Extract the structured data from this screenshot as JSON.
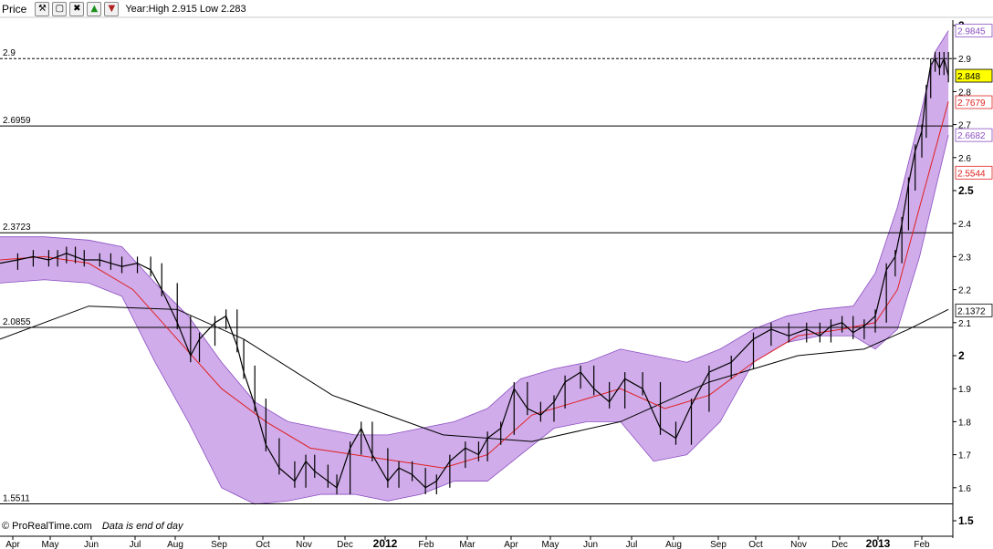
{
  "toolbar": {
    "title": "Price",
    "year_info": "Year:High 2.915 Low 2.283",
    "icons": [
      "wrench-icon",
      "window-icon",
      "close-icon",
      "up-arrow-icon",
      "down-arrow-icon"
    ]
  },
  "footer": {
    "brand": "© ProRealTime.com",
    "note": "Data is end of day"
  },
  "colors": {
    "band_fill": "#c89ee6",
    "band_edge": "#8b4fc2",
    "ma_red": "#e02020",
    "ma_green": "#22a022",
    "ma_pink": "#d070b0",
    "ma_long": "#000000",
    "price_tag": "#ffff00"
  },
  "chart_data": {
    "type": "line",
    "title": "",
    "xlabel": "",
    "ylabel": "",
    "ylim": [
      1.5,
      3.0
    ],
    "grid": false,
    "x_tick_labels": [
      "Apr",
      "May",
      "Jun",
      "Jul",
      "Aug",
      "Sep",
      "Oct",
      "Nov",
      "Dec",
      "2012",
      "Feb",
      "Mar",
      "Apr",
      "May",
      "Jun",
      "Jul",
      "Aug",
      "Sep",
      "Oct",
      "Nov",
      "Dec",
      "2013",
      "Feb"
    ],
    "y_tick_labels": [
      "1.5",
      "1.6",
      "1.7",
      "1.8",
      "1.9",
      "2",
      "2.1",
      "2.2",
      "2.3",
      "2.4",
      "2.5",
      "2.6",
      "2.7",
      "2.8",
      "2.9",
      "3"
    ],
    "horizontal_levels": [
      {
        "label": "2.9",
        "value": 2.9,
        "style": "dashed"
      },
      {
        "label": "2.6959",
        "value": 2.6959,
        "style": "solid"
      },
      {
        "label": "2.3723",
        "value": 2.3723,
        "style": "solid"
      },
      {
        "label": "2.0855",
        "value": 2.0855,
        "style": "solid"
      },
      {
        "label": "1.5511",
        "value": 1.5511,
        "style": "solid"
      }
    ],
    "right_tags": [
      {
        "label": "2.9845",
        "value": 2.9845,
        "color": "#8b4fc2"
      },
      {
        "label": "2.848",
        "value": 2.848,
        "color": "#000000",
        "highlight": true
      },
      {
        "label": "2.7679",
        "value": 2.7679,
        "color": "#e02020"
      },
      {
        "label": "2.6682",
        "value": 2.6682,
        "color": "#8b4fc2"
      },
      {
        "label": "2.5544",
        "value": 2.5544,
        "color": "#e02020"
      },
      {
        "label": "2.1372",
        "value": 2.1372,
        "color": "#000000"
      }
    ],
    "series": [
      {
        "key": "close",
        "x": [
          0,
          8,
          15,
          22,
          26,
          30,
          34,
          38,
          45,
          50,
          55,
          62,
          68,
          73,
          80,
          86,
          90,
          97,
          102,
          107,
          110,
          115,
          120,
          126,
          133,
          138,
          142
        ],
        "values": [
          2.28,
          2.29,
          2.3,
          2.29,
          2.3,
          2.31,
          2.3,
          2.29,
          2.29,
          2.28,
          2.27,
          2.28,
          2.26,
          2.2,
          2.1,
          2.0,
          2.05,
          2.1,
          2.12,
          2.03,
          1.95,
          1.85,
          1.73,
          1.66,
          1.62,
          1.68,
          1.65
        ]
      },
      {
        "key": "close_cont",
        "x": [
          142,
          148,
          152,
          158,
          163,
          168,
          175,
          180,
          186,
          192,
          197,
          203,
          210,
          216,
          220,
          226,
          232,
          238,
          244,
          250,
          255,
          262,
          268,
          275,
          282,
          290,
          298,
          305,
          312,
          320,
          330,
          340,
          348,
          356,
          364,
          370,
          375,
          380,
          385,
          390,
          395,
          400,
          404,
          407,
          410,
          413,
          416,
          418,
          420,
          422,
          424,
          426,
          428
        ],
        "values": [
          1.65,
          1.62,
          1.6,
          1.72,
          1.78,
          1.7,
          1.62,
          1.66,
          1.64,
          1.6,
          1.62,
          1.68,
          1.72,
          1.7,
          1.75,
          1.78,
          1.9,
          1.84,
          1.82,
          1.86,
          1.92,
          1.95,
          1.9,
          1.86,
          1.93,
          1.9,
          1.78,
          1.75,
          1.85,
          1.95,
          1.98,
          2.05,
          2.08,
          2.06,
          2.08,
          2.06,
          2.09,
          2.1,
          2.07,
          2.09,
          2.12,
          2.26,
          2.3,
          2.4,
          2.52,
          2.62,
          2.68,
          2.8,
          2.88,
          2.9,
          2.87,
          2.9,
          2.848
        ]
      },
      {
        "key": "sma_long",
        "x": [
          0,
          40,
          80,
          110,
          150,
          200,
          240,
          280,
          320,
          360,
          390,
          410,
          428
        ],
        "values": [
          2.05,
          2.15,
          2.14,
          2.05,
          1.88,
          1.76,
          1.74,
          1.8,
          1.92,
          2.0,
          2.02,
          2.08,
          2.14
        ]
      },
      {
        "key": "sma_red",
        "x": [
          0,
          20,
          40,
          60,
          80,
          100,
          120,
          140,
          160,
          180,
          200,
          220,
          240,
          260,
          280,
          300,
          320,
          340,
          360,
          380,
          395,
          405,
          415,
          428
        ],
        "values": [
          2.29,
          2.3,
          2.28,
          2.2,
          2.05,
          1.9,
          1.8,
          1.72,
          1.7,
          1.68,
          1.66,
          1.7,
          1.82,
          1.86,
          1.9,
          1.84,
          1.88,
          1.98,
          2.06,
          2.08,
          2.1,
          2.2,
          2.45,
          2.77
        ]
      },
      {
        "key": "band_upper",
        "x": [
          0,
          20,
          40,
          55,
          70,
          85,
          100,
          115,
          130,
          145,
          160,
          175,
          190,
          205,
          220,
          235,
          250,
          265,
          280,
          295,
          310,
          325,
          340,
          355,
          370,
          385,
          395,
          405,
          415,
          422,
          428
        ],
        "values": [
          2.36,
          2.36,
          2.35,
          2.33,
          2.22,
          2.12,
          1.98,
          1.86,
          1.8,
          1.78,
          1.76,
          1.76,
          1.78,
          1.8,
          1.84,
          1.93,
          1.96,
          1.98,
          2.02,
          2.0,
          1.98,
          2.02,
          2.08,
          2.12,
          2.14,
          2.15,
          2.25,
          2.45,
          2.72,
          2.92,
          2.9845
        ]
      },
      {
        "key": "band_lower",
        "x": [
          0,
          20,
          40,
          55,
          70,
          85,
          100,
          115,
          130,
          145,
          160,
          175,
          190,
          205,
          220,
          235,
          250,
          265,
          280,
          295,
          310,
          325,
          340,
          355,
          370,
          385,
          395,
          405,
          415,
          422,
          428
        ],
        "values": [
          2.22,
          2.23,
          2.22,
          2.18,
          1.98,
          1.8,
          1.6,
          1.55,
          1.56,
          1.58,
          1.58,
          1.56,
          1.58,
          1.62,
          1.62,
          1.7,
          1.78,
          1.8,
          1.8,
          1.68,
          1.7,
          1.8,
          1.98,
          2.04,
          2.06,
          2.06,
          2.02,
          2.08,
          2.3,
          2.5,
          2.6682
        ]
      }
    ]
  }
}
